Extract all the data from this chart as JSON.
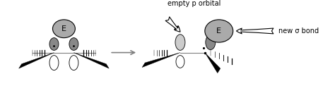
{
  "bg_color": "#ffffff",
  "figsize": [
    4.74,
    1.22
  ],
  "dpi": 100,
  "label_empty_p": "empty p orbital",
  "label_new_bond": "new σ bond",
  "label_E": "E",
  "gray_dark": "#888888",
  "gray_mid": "#aaaaaa",
  "gray_light": "#cccccc",
  "white": "#ffffff",
  "text_fontsize": 7.0
}
